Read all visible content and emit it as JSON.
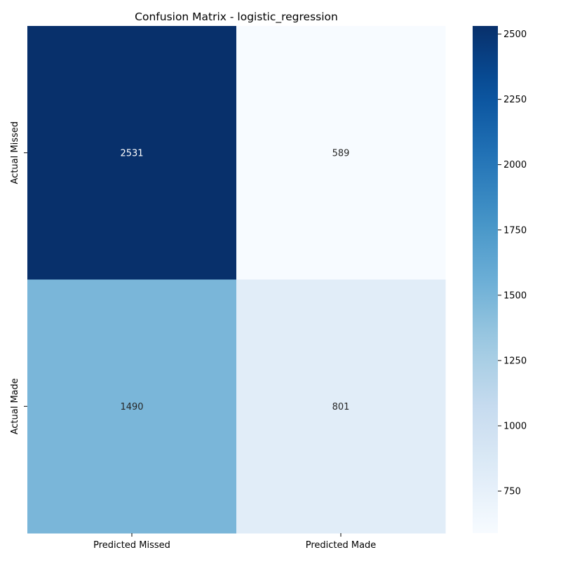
{
  "chart_data": {
    "type": "heatmap",
    "title": "Confusion Matrix - logistic_regression",
    "x_categories": [
      "Predicted Missed",
      "Predicted Made"
    ],
    "y_categories": [
      "Actual Missed",
      "Actual Made"
    ],
    "values": [
      [
        2531,
        589
      ],
      [
        1490,
        801
      ]
    ],
    "colorbar": {
      "min": 589,
      "max": 2531,
      "ticks": [
        750,
        1000,
        1250,
        1500,
        1750,
        2000,
        2250,
        2500
      ],
      "colormap": "Blues"
    },
    "colors": {
      "low": "#f7fbff",
      "high": "#08306b",
      "text_dark": "#262626",
      "text_light": "#ffffff"
    }
  }
}
